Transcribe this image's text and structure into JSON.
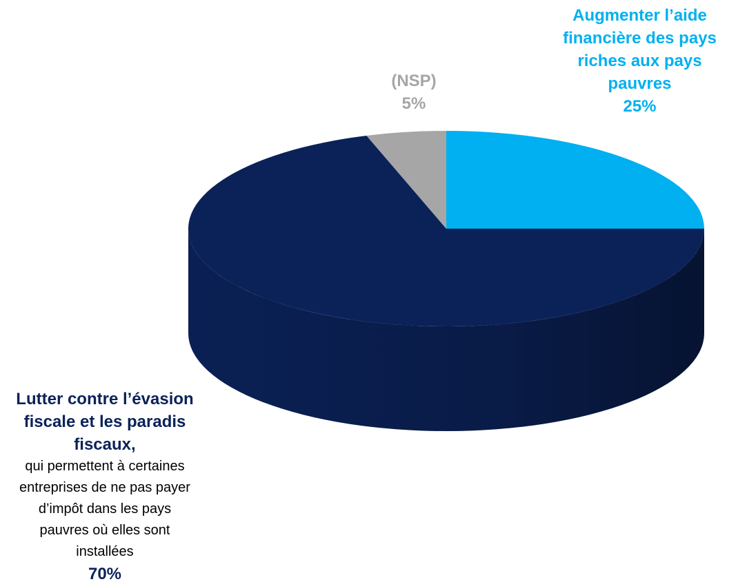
{
  "chart_data": {
    "type": "pie",
    "categories": [
      "Augmenter l’aide financière des pays riches aux pays pauvres",
      "Lutter contre l’évasion fiscale et les paradis fiscaux,",
      "(NSP)"
    ],
    "values": [
      25,
      70,
      5
    ],
    "value_labels": [
      "25%",
      "70%",
      "5%"
    ],
    "colors": [
      "#00b0f0",
      "#0b2259",
      "#a6a6a6"
    ],
    "annotation": "qui permettent à certaines entreprises de ne pas payer d’impôt dans les pays pauvres où elles sont installées"
  }
}
